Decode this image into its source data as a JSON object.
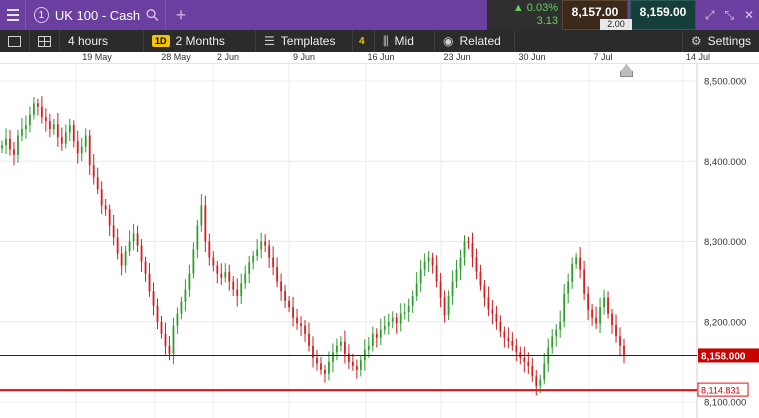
{
  "instrument": {
    "number": "1",
    "name": "UK 100 - Cash"
  },
  "quote": {
    "change_pct": "0.03%",
    "change_abs": "3.13",
    "sell": "8,157.00",
    "buy": "8,159.00",
    "spread": "2.00"
  },
  "toolbar": {
    "interval": "4 hours",
    "interval_badge": "1D",
    "range": "2 Months",
    "templates": "Templates",
    "templates_count": "4",
    "price_type": "Mid",
    "related": "Related",
    "settings": "Settings"
  },
  "dates": [
    "19 May",
    "28 May",
    "2 Jun",
    "9 Jun",
    "16 Jun",
    "23 Jun",
    "30 Jun",
    "7 Jul",
    "14 Jul"
  ],
  "price_labels": {
    "current": "8,158.000",
    "line": "8,114.831"
  },
  "colors": {
    "up": "#2e9e2e",
    "down": "#d21f1f",
    "brand": "#6a3fa0",
    "line": "#e01010"
  },
  "chart_data": {
    "type": "candlestick",
    "ylim": [
      8080,
      8520
    ],
    "yticks": [
      8100,
      8200,
      8300,
      8400,
      8500
    ],
    "ytick_labels": [
      "8,100.000",
      "8,200.000",
      "8,300.000",
      "8,400.000",
      "8,500.000"
    ],
    "x_dates": [
      "19 May",
      "28 May",
      "2 Jun",
      "9 Jun",
      "16 Jun",
      "23 Jun",
      "30 Jun",
      "7 Jul",
      "14 Jul"
    ],
    "current_price": 8158.0,
    "horizontal_line": 8114.831,
    "closes": [
      8420,
      8428,
      8415,
      8408,
      8432,
      8440,
      8445,
      8458,
      8472,
      8468,
      8455,
      8450,
      8440,
      8446,
      8430,
      8422,
      8436,
      8445,
      8425,
      8410,
      8418,
      8432,
      8395,
      8380,
      8365,
      8345,
      8340,
      8320,
      8305,
      8285,
      8270,
      8288,
      8300,
      8310,
      8295,
      8275,
      8260,
      8238,
      8220,
      8200,
      8185,
      8170,
      8160,
      8195,
      8210,
      8225,
      8240,
      8260,
      8290,
      8320,
      8345,
      8300,
      8280,
      8270,
      8260,
      8255,
      8262,
      8250,
      8240,
      8232,
      8248,
      8260,
      8274,
      8282,
      8290,
      8300,
      8295,
      8280,
      8268,
      8250,
      8238,
      8226,
      8218,
      8205,
      8198,
      8195,
      8185,
      8170,
      8155,
      8148,
      8140,
      8135,
      8150,
      8162,
      8170,
      8175,
      8160,
      8150,
      8145,
      8140,
      8152,
      8165,
      8170,
      8185,
      8180,
      8190,
      8195,
      8200,
      8205,
      8198,
      8210,
      8212,
      8220,
      8232,
      8248,
      8265,
      8275,
      8280,
      8270,
      8250,
      8230,
      8208,
      8232,
      8250,
      8265,
      8280,
      8300,
      8298,
      8280,
      8262,
      8245,
      8230,
      8215,
      8210,
      8200,
      8188,
      8180,
      8176,
      8170,
      8162,
      8155,
      8150,
      8145,
      8132,
      8120,
      8128,
      8148,
      8168,
      8182,
      8190,
      8200,
      8235,
      8250,
      8272,
      8280,
      8265,
      8235,
      8215,
      8205,
      8198,
      8218,
      8230,
      8210,
      8196,
      8182,
      8170,
      8158
    ]
  }
}
